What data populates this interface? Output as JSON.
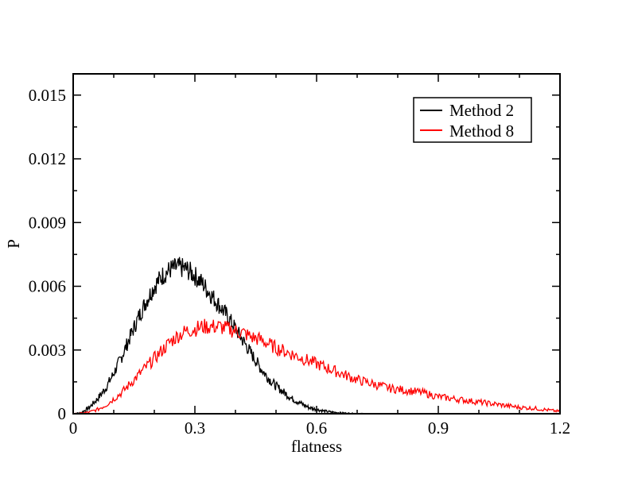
{
  "chart_data": {
    "type": "line",
    "xlabel": "flatness",
    "ylabel": "P",
    "xlim": [
      0,
      1.2
    ],
    "ylim": [
      0,
      0.016
    ],
    "x_ticks": [
      {
        "value": 0,
        "label": "0"
      },
      {
        "value": 0.3,
        "label": "0.3"
      },
      {
        "value": 0.6,
        "label": "0.6"
      },
      {
        "value": 0.9,
        "label": "0.9"
      },
      {
        "value": 1.2,
        "label": "1.2"
      }
    ],
    "y_ticks": [
      {
        "value": 0,
        "label": "0"
      },
      {
        "value": 0.003,
        "label": "0.003"
      },
      {
        "value": 0.006,
        "label": "0.006"
      },
      {
        "value": 0.009,
        "label": "0.009"
      },
      {
        "value": 0.012,
        "label": "0.012"
      },
      {
        "value": 0.015,
        "label": "0.015"
      }
    ],
    "grid": false,
    "legend_position": "top-right",
    "series": [
      {
        "name": "Method 2",
        "color": "#000000",
        "x": [
          0.0,
          0.02,
          0.04,
          0.06,
          0.08,
          0.1,
          0.12,
          0.14,
          0.16,
          0.18,
          0.2,
          0.22,
          0.24,
          0.26,
          0.28,
          0.3,
          0.32,
          0.34,
          0.36,
          0.38,
          0.4,
          0.42,
          0.44,
          0.46,
          0.48,
          0.5,
          0.52,
          0.54,
          0.56,
          0.58,
          0.6,
          0.62,
          0.64,
          0.66,
          0.68,
          0.7,
          0.72,
          0.74
        ],
        "values": [
          0.0,
          5e-05,
          0.0003,
          0.0007,
          0.0012,
          0.0019,
          0.0027,
          0.0036,
          0.0045,
          0.0053,
          0.006,
          0.0065,
          0.0068,
          0.0069,
          0.0068,
          0.0065,
          0.0061,
          0.0056,
          0.0051,
          0.0046,
          0.004,
          0.0034,
          0.0028,
          0.0022,
          0.0017,
          0.0013,
          0.001,
          0.0007,
          0.0005,
          0.0003,
          0.0002,
          0.00012,
          7e-05,
          4e-05,
          2e-05,
          1e-05,
          5e-06,
          0.0
        ]
      },
      {
        "name": "Method 8",
        "color": "#ff0000",
        "x": [
          0.0,
          0.02,
          0.04,
          0.06,
          0.08,
          0.1,
          0.12,
          0.14,
          0.16,
          0.18,
          0.2,
          0.22,
          0.24,
          0.26,
          0.28,
          0.3,
          0.32,
          0.34,
          0.36,
          0.38,
          0.4,
          0.42,
          0.44,
          0.46,
          0.48,
          0.5,
          0.54,
          0.58,
          0.62,
          0.66,
          0.7,
          0.74,
          0.78,
          0.82,
          0.86,
          0.9,
          0.94,
          0.98,
          1.02,
          1.06,
          1.1,
          1.14,
          1.18,
          1.2
        ],
        "values": [
          0.0,
          2e-05,
          8e-05,
          0.0002,
          0.0004,
          0.0007,
          0.001,
          0.0014,
          0.0018,
          0.0022,
          0.0026,
          0.003,
          0.0034,
          0.0037,
          0.0039,
          0.004,
          0.0041,
          0.0041,
          0.0041,
          0.004,
          0.0039,
          0.0038,
          0.0036,
          0.0035,
          0.0033,
          0.0031,
          0.0028,
          0.0025,
          0.0022,
          0.0019,
          0.0016,
          0.0014,
          0.0012,
          0.0011,
          0.001,
          0.0008,
          0.0007,
          0.0006,
          0.0005,
          0.0004,
          0.0003,
          0.00025,
          0.00015,
          0.0001
        ]
      }
    ]
  }
}
